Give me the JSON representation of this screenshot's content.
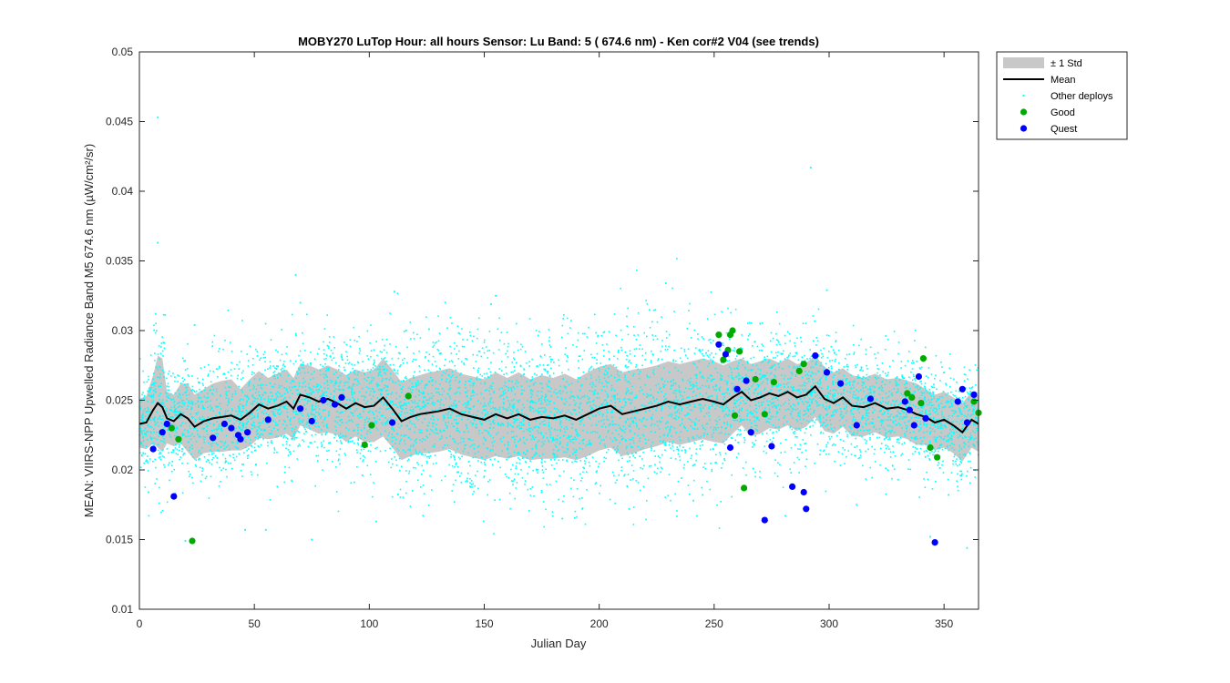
{
  "chart_data": {
    "type": "scatter",
    "title": "MOBY270   LuTop  Hour: all hours  Sensor: Lu Band: 5 ( 674.6 nm)  - Ken cor#2 V04 (see trends)",
    "xlabel": "Julian Day",
    "ylabel": "MEAN: VIIRS-NPP Upwelled Radiance Band M5 674.6 nm (µW/cm²/sr)",
    "xlim": [
      0,
      365
    ],
    "ylim": [
      0.01,
      0.05
    ],
    "xticks": [
      0,
      50,
      100,
      150,
      200,
      250,
      300,
      350
    ],
    "xtick_labels": [
      "0",
      "50",
      "100",
      "150",
      "200",
      "250",
      "300",
      "350"
    ],
    "yticks": [
      0.01,
      0.015,
      0.02,
      0.025,
      0.03,
      0.035,
      0.04,
      0.045,
      0.05
    ],
    "ytick_labels": [
      "0.01",
      "0.015",
      "0.02",
      "0.025",
      "0.03",
      "0.035",
      "0.04",
      "0.045",
      "0.05"
    ],
    "grid": false,
    "legend_position": "outside-top-right",
    "colors": {
      "band": "#c8c8c8",
      "mean": "#000000",
      "other": "#00ffff",
      "good": "#00aa00",
      "quest": "#0000ff"
    },
    "legend": [
      {
        "key": "band",
        "label": "± 1 Std"
      },
      {
        "key": "mean",
        "label": "Mean"
      },
      {
        "key": "other",
        "label": "Other deploys"
      },
      {
        "key": "good",
        "label": "Good"
      },
      {
        "key": "quest",
        "label": "Quest"
      }
    ],
    "mean_series": {
      "x": [
        0,
        3,
        6,
        8,
        10,
        12,
        15,
        18,
        21,
        24,
        28,
        32,
        36,
        40,
        44,
        48,
        52,
        56,
        60,
        64,
        67,
        70,
        74,
        78,
        82,
        86,
        90,
        94,
        98,
        102,
        106,
        110,
        114,
        118,
        122,
        126,
        130,
        135,
        140,
        145,
        150,
        155,
        160,
        165,
        170,
        175,
        180,
        185,
        190,
        195,
        200,
        205,
        210,
        215,
        220,
        225,
        230,
        235,
        240,
        245,
        250,
        254,
        258,
        262,
        266,
        270,
        274,
        278,
        282,
        286,
        290,
        294,
        298,
        302,
        306,
        310,
        315,
        320,
        325,
        330,
        334,
        338,
        342,
        346,
        350,
        354,
        358,
        362,
        365
      ],
      "y": [
        0.0233,
        0.0234,
        0.0243,
        0.0248,
        0.0245,
        0.0237,
        0.0235,
        0.024,
        0.0237,
        0.0231,
        0.0235,
        0.0237,
        0.0238,
        0.0239,
        0.0236,
        0.0241,
        0.0247,
        0.0244,
        0.0246,
        0.0249,
        0.0244,
        0.0254,
        0.0252,
        0.0249,
        0.0251,
        0.0248,
        0.0244,
        0.0248,
        0.0245,
        0.0246,
        0.0252,
        0.0244,
        0.0235,
        0.0238,
        0.024,
        0.0241,
        0.0242,
        0.0244,
        0.024,
        0.0238,
        0.0236,
        0.024,
        0.0237,
        0.024,
        0.0236,
        0.0238,
        0.0237,
        0.0239,
        0.0236,
        0.024,
        0.0244,
        0.0246,
        0.024,
        0.0242,
        0.0244,
        0.0246,
        0.0249,
        0.0247,
        0.0249,
        0.0251,
        0.0249,
        0.0247,
        0.0252,
        0.0256,
        0.025,
        0.0252,
        0.0255,
        0.0253,
        0.0256,
        0.0252,
        0.0254,
        0.026,
        0.0251,
        0.0248,
        0.0252,
        0.0246,
        0.0245,
        0.0248,
        0.0244,
        0.0245,
        0.0243,
        0.024,
        0.0238,
        0.0234,
        0.0236,
        0.0232,
        0.0227,
        0.0236,
        0.0233
      ]
    },
    "std_band": {
      "x": [
        0,
        3,
        6,
        8,
        10,
        12,
        15,
        18,
        21,
        24,
        28,
        32,
        36,
        40,
        44,
        48,
        52,
        56,
        60,
        64,
        67,
        70,
        74,
        78,
        82,
        86,
        90,
        94,
        98,
        102,
        106,
        110,
        114,
        118,
        122,
        126,
        130,
        135,
        140,
        145,
        150,
        155,
        160,
        165,
        170,
        175,
        180,
        185,
        190,
        195,
        200,
        205,
        210,
        215,
        220,
        225,
        230,
        235,
        240,
        245,
        250,
        254,
        258,
        262,
        266,
        270,
        274,
        278,
        282,
        286,
        290,
        294,
        298,
        302,
        306,
        310,
        315,
        320,
        325,
        330,
        334,
        338,
        342,
        346,
        350,
        354,
        358,
        362,
        365
      ],
      "upper": [
        0.0251,
        0.0253,
        0.0268,
        0.0282,
        0.028,
        0.0256,
        0.0254,
        0.0262,
        0.0262,
        0.0254,
        0.0258,
        0.0262,
        0.0264,
        0.0265,
        0.0258,
        0.0265,
        0.0271,
        0.0266,
        0.0269,
        0.0272,
        0.0266,
        0.0276,
        0.0275,
        0.0272,
        0.0275,
        0.0272,
        0.0268,
        0.0272,
        0.027,
        0.0272,
        0.028,
        0.0272,
        0.0263,
        0.0266,
        0.0268,
        0.027,
        0.0271,
        0.0273,
        0.0269,
        0.0267,
        0.0265,
        0.027,
        0.0266,
        0.027,
        0.0265,
        0.0268,
        0.0266,
        0.0269,
        0.0265,
        0.027,
        0.0274,
        0.0276,
        0.027,
        0.0272,
        0.0273,
        0.0275,
        0.0278,
        0.0276,
        0.0278,
        0.028,
        0.0278,
        0.0275,
        0.0278,
        0.028,
        0.0276,
        0.0278,
        0.028,
        0.0277,
        0.028,
        0.0276,
        0.0277,
        0.0282,
        0.0274,
        0.027,
        0.0273,
        0.0268,
        0.0266,
        0.0269,
        0.0265,
        0.0266,
        0.0264,
        0.0262,
        0.0258,
        0.0254,
        0.0256,
        0.0252,
        0.0248,
        0.0256,
        0.0253
      ],
      "lower": [
        0.0216,
        0.0215,
        0.0219,
        0.0216,
        0.0213,
        0.0219,
        0.0217,
        0.0219,
        0.0213,
        0.0207,
        0.0212,
        0.0213,
        0.0213,
        0.0214,
        0.0214,
        0.0217,
        0.0223,
        0.0222,
        0.0223,
        0.0226,
        0.0222,
        0.0232,
        0.0229,
        0.0226,
        0.0227,
        0.0225,
        0.022,
        0.0224,
        0.022,
        0.022,
        0.0224,
        0.0216,
        0.0207,
        0.021,
        0.0212,
        0.0212,
        0.0213,
        0.0215,
        0.0211,
        0.0209,
        0.0207,
        0.021,
        0.0208,
        0.021,
        0.0207,
        0.0208,
        0.0208,
        0.0209,
        0.0207,
        0.021,
        0.0214,
        0.0216,
        0.021,
        0.0212,
        0.0215,
        0.0217,
        0.022,
        0.0218,
        0.022,
        0.0222,
        0.022,
        0.0219,
        0.0226,
        0.0232,
        0.0224,
        0.0226,
        0.023,
        0.0229,
        0.0232,
        0.0228,
        0.0231,
        0.0238,
        0.0228,
        0.0226,
        0.0231,
        0.0224,
        0.0224,
        0.0227,
        0.0223,
        0.0224,
        0.0222,
        0.0218,
        0.0218,
        0.0214,
        0.0216,
        0.0212,
        0.0206,
        0.0216,
        0.0213
      ]
    },
    "other_deploys_sample": {
      "x": [
        8,
        8,
        7,
        68,
        292,
        24,
        70,
        116,
        126,
        155,
        229,
        299,
        111,
        153,
        270,
        4,
        46,
        55,
        75,
        103,
        137,
        184,
        213,
        241,
        267,
        312,
        344,
        360,
        20,
        60,
        97,
        162,
        207,
        245,
        281,
        330,
        352
      ],
      "y": [
        0.0453,
        0.0363,
        0.0312,
        0.034,
        0.0417,
        0.0304,
        0.032,
        0.03,
        0.0301,
        0.0325,
        0.0334,
        0.0329,
        0.0328,
        0.0319,
        0.0305,
        0.0184,
        0.0157,
        0.0157,
        0.015,
        0.0163,
        0.0177,
        0.0165,
        0.0172,
        0.0178,
        0.0201,
        0.0175,
        0.0152,
        0.0144,
        0.0149,
        0.0188,
        0.0196,
        0.0192,
        0.0176,
        0.0182,
        0.0167,
        0.0193,
        0.0182
      ]
    },
    "good": {
      "x": [
        14,
        17,
        23,
        98,
        101,
        117,
        252,
        254,
        256,
        257,
        258,
        259,
        261,
        263,
        268,
        272,
        276,
        287,
        289,
        334,
        336,
        340,
        341,
        344,
        347,
        363,
        365
      ],
      "y": [
        0.023,
        0.0222,
        0.0149,
        0.0218,
        0.0232,
        0.0253,
        0.0297,
        0.0279,
        0.0286,
        0.0297,
        0.03,
        0.0239,
        0.0285,
        0.0187,
        0.0265,
        0.024,
        0.0263,
        0.0271,
        0.0276,
        0.0255,
        0.0252,
        0.0248,
        0.028,
        0.0216,
        0.0209,
        0.0249,
        0.0241
      ]
    },
    "quest": {
      "x": [
        6,
        10,
        12,
        15,
        32,
        37,
        40,
        43,
        44,
        47,
        56,
        70,
        75,
        80,
        85,
        88,
        110,
        252,
        255,
        257,
        260,
        264,
        266,
        272,
        275,
        284,
        289,
        290,
        294,
        299,
        305,
        312,
        318,
        333,
        335,
        337,
        339,
        342,
        346,
        356,
        358,
        360,
        363
      ],
      "y": [
        0.0215,
        0.0227,
        0.0233,
        0.0181,
        0.0223,
        0.0233,
        0.023,
        0.0225,
        0.0222,
        0.0227,
        0.0236,
        0.0244,
        0.0235,
        0.025,
        0.0247,
        0.0252,
        0.0234,
        0.029,
        0.0283,
        0.0216,
        0.0258,
        0.0264,
        0.0227,
        0.0164,
        0.0217,
        0.0188,
        0.0184,
        0.0172,
        0.0282,
        0.027,
        0.0262,
        0.0232,
        0.0251,
        0.0249,
        0.0243,
        0.0232,
        0.0267,
        0.0237,
        0.0148,
        0.0249,
        0.0258,
        0.0234,
        0.0254
      ]
    }
  }
}
